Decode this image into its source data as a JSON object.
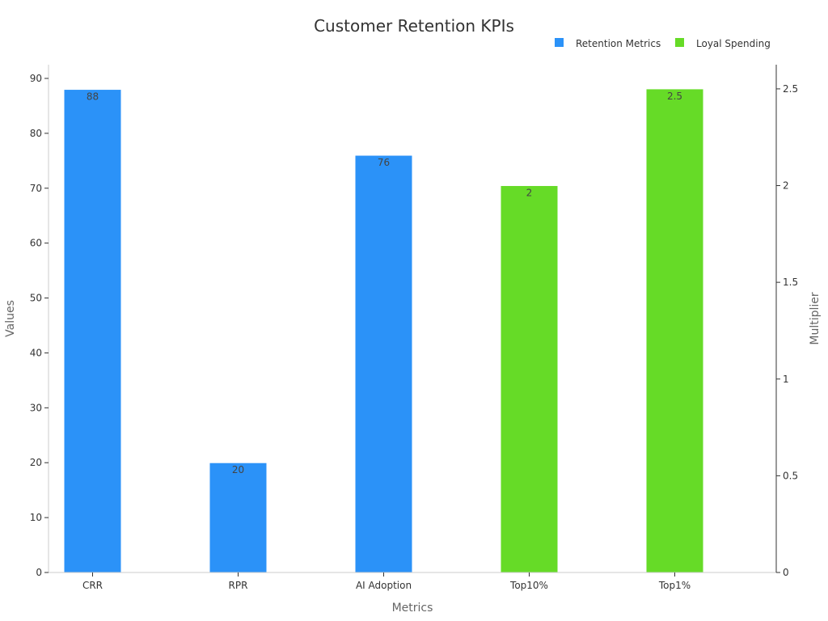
{
  "chart_data": {
    "type": "bar",
    "title": "Customer Retention KPIs",
    "xlabel": "Metrics",
    "ylabel": "Values",
    "y2label": "Multiplier",
    "categories": [
      "CRR",
      "RPR",
      "AI Adoption",
      "Top10%",
      "Top1%"
    ],
    "series": [
      {
        "name": "Retention Metrics",
        "axis": "left",
        "color": "#2b92f8",
        "values": [
          88,
          20,
          76,
          null,
          null
        ]
      },
      {
        "name": "Loyal Spending",
        "axis": "right",
        "color": "#66db27",
        "values": [
          null,
          null,
          null,
          2,
          2.5
        ]
      }
    ],
    "ylim": [
      0,
      92.5
    ],
    "yticks": [
      0,
      10,
      20,
      30,
      40,
      50,
      60,
      70,
      80,
      90
    ],
    "y2lim": [
      0,
      2.625
    ],
    "y2ticks": [
      0,
      0.5,
      1,
      1.5,
      2,
      2.5
    ],
    "grid": false,
    "legend_position": "top-right"
  }
}
